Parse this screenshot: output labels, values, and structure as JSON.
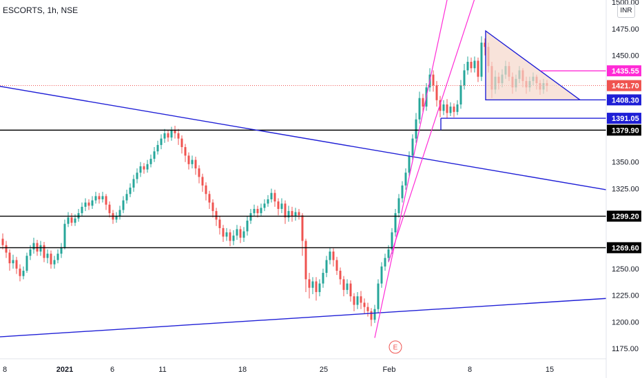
{
  "header": {
    "title": "ESCORTS, 1h, NSE",
    "currency": "INR"
  },
  "colors": {
    "up": "#26a69a",
    "down": "#ef5350",
    "trend_blue": "#1f1fd6",
    "channel_magenta": "#ff2bd6",
    "level_black": "#000000",
    "triangle_fill": "#f5d7cb",
    "last_price": "#ef5350"
  },
  "chart_data": {
    "type": "candlestick",
    "symbol": "ESCORTS",
    "interval": "1h",
    "exchange": "NSE",
    "x_ticks": [
      "8",
      "2021",
      "6",
      "11",
      "18",
      "25",
      "Feb",
      "8",
      "15"
    ],
    "y_ticks": [
      "1500.00",
      "1475.00",
      "1450.00",
      "1350.00",
      "1325.00",
      "1250.00",
      "1225.00",
      "1200.00",
      "1175.00"
    ],
    "ylim": [
      1168,
      1502
    ],
    "price_tags": [
      {
        "label": "1435.55",
        "value": 1435.55,
        "kind": "magenta"
      },
      {
        "label": "1421.70",
        "value": 1421.7,
        "kind": "last"
      },
      {
        "label": "1408.30",
        "value": 1408.3,
        "kind": "blue"
      },
      {
        "label": "1391.05",
        "value": 1391.05,
        "kind": "blue"
      },
      {
        "label": "1379.90",
        "value": 1379.9,
        "kind": "black"
      },
      {
        "label": "1299.20",
        "value": 1299.2,
        "kind": "black"
      },
      {
        "label": "1269.60",
        "value": 1269.6,
        "kind": "black"
      }
    ],
    "horizontal_levels": [
      1379.9,
      1299.2,
      1269.6
    ],
    "last_price": 1421.7,
    "events": [
      {
        "label": "E",
        "type": "earnings"
      }
    ],
    "candles": [
      [
        1278,
        1272,
        1283,
        1268
      ],
      [
        1272,
        1265,
        1276,
        1260
      ],
      [
        1265,
        1255,
        1268,
        1248
      ],
      [
        1255,
        1258,
        1263,
        1250
      ],
      [
        1258,
        1250,
        1261,
        1245
      ],
      [
        1250,
        1243,
        1254,
        1238
      ],
      [
        1243,
        1248,
        1252,
        1240
      ],
      [
        1248,
        1262,
        1265,
        1246
      ],
      [
        1262,
        1268,
        1272,
        1258
      ],
      [
        1268,
        1274,
        1279,
        1264
      ],
      [
        1274,
        1266,
        1277,
        1262
      ],
      [
        1266,
        1272,
        1276,
        1262
      ],
      [
        1272,
        1260,
        1275,
        1256
      ],
      [
        1260,
        1264,
        1268,
        1255
      ],
      [
        1264,
        1254,
        1267,
        1250
      ],
      [
        1254,
        1258,
        1262,
        1250
      ],
      [
        1258,
        1264,
        1268,
        1255
      ],
      [
        1264,
        1270,
        1274,
        1260
      ],
      [
        1270,
        1292,
        1296,
        1268
      ],
      [
        1292,
        1298,
        1303,
        1289
      ],
      [
        1298,
        1293,
        1302,
        1290
      ],
      [
        1293,
        1297,
        1301,
        1290
      ],
      [
        1297,
        1302,
        1306,
        1294
      ],
      [
        1302,
        1308,
        1312,
        1299
      ],
      [
        1308,
        1312,
        1316,
        1304
      ],
      [
        1312,
        1309,
        1315,
        1305
      ],
      [
        1309,
        1314,
        1318,
        1306
      ],
      [
        1314,
        1318,
        1322,
        1311
      ],
      [
        1318,
        1315,
        1321,
        1311
      ],
      [
        1315,
        1318,
        1322,
        1312
      ],
      [
        1318,
        1310,
        1320,
        1305
      ],
      [
        1310,
        1302,
        1313,
        1298
      ],
      [
        1302,
        1296,
        1305,
        1292
      ],
      [
        1296,
        1299,
        1303,
        1293
      ],
      [
        1299,
        1305,
        1309,
        1296
      ],
      [
        1305,
        1314,
        1318,
        1302
      ],
      [
        1314,
        1320,
        1324,
        1311
      ],
      [
        1320,
        1326,
        1330,
        1317
      ],
      [
        1326,
        1334,
        1338,
        1322
      ],
      [
        1334,
        1340,
        1344,
        1330
      ],
      [
        1340,
        1346,
        1350,
        1336
      ],
      [
        1346,
        1343,
        1349,
        1339
      ],
      [
        1343,
        1348,
        1352,
        1340
      ],
      [
        1348,
        1353,
        1357,
        1345
      ],
      [
        1353,
        1360,
        1364,
        1350
      ],
      [
        1360,
        1366,
        1370,
        1357
      ],
      [
        1366,
        1372,
        1376,
        1362
      ],
      [
        1372,
        1377,
        1381,
        1368
      ],
      [
        1377,
        1373,
        1380,
        1369
      ],
      [
        1373,
        1380,
        1383,
        1370
      ],
      [
        1380,
        1377,
        1384,
        1372
      ],
      [
        1377,
        1372,
        1381,
        1366
      ],
      [
        1372,
        1364,
        1375,
        1358
      ],
      [
        1364,
        1356,
        1367,
        1350
      ],
      [
        1356,
        1348,
        1359,
        1343
      ],
      [
        1348,
        1352,
        1356,
        1344
      ],
      [
        1352,
        1344,
        1355,
        1338
      ],
      [
        1344,
        1336,
        1347,
        1330
      ],
      [
        1336,
        1328,
        1339,
        1322
      ],
      [
        1328,
        1320,
        1331,
        1314
      ],
      [
        1320,
        1312,
        1323,
        1306
      ],
      [
        1312,
        1304,
        1315,
        1298
      ],
      [
        1304,
        1296,
        1307,
        1290
      ],
      [
        1296,
        1288,
        1299,
        1282
      ],
      [
        1288,
        1280,
        1291,
        1275
      ],
      [
        1280,
        1284,
        1288,
        1276
      ],
      [
        1284,
        1276,
        1287,
        1271
      ],
      [
        1276,
        1281,
        1286,
        1272
      ],
      [
        1281,
        1287,
        1291,
        1277
      ],
      [
        1287,
        1279,
        1290,
        1274
      ],
      [
        1279,
        1285,
        1289,
        1275
      ],
      [
        1285,
        1295,
        1299,
        1281
      ],
      [
        1295,
        1302,
        1306,
        1292
      ],
      [
        1302,
        1306,
        1310,
        1299
      ],
      [
        1306,
        1302,
        1309,
        1298
      ],
      [
        1302,
        1307,
        1311,
        1299
      ],
      [
        1307,
        1311,
        1315,
        1304
      ],
      [
        1311,
        1315,
        1319,
        1308
      ],
      [
        1315,
        1321,
        1325,
        1312
      ],
      [
        1321,
        1313,
        1324,
        1308
      ],
      [
        1313,
        1306,
        1316,
        1300
      ],
      [
        1306,
        1311,
        1316,
        1302
      ],
      [
        1311,
        1298,
        1314,
        1292
      ],
      [
        1298,
        1304,
        1309,
        1294
      ],
      [
        1304,
        1299,
        1308,
        1294
      ],
      [
        1299,
        1303,
        1307,
        1295
      ],
      [
        1303,
        1300,
        1306,
        1296
      ],
      [
        1300,
        1276,
        1302,
        1262
      ],
      [
        1276,
        1240,
        1278,
        1228
      ],
      [
        1240,
        1232,
        1246,
        1222
      ],
      [
        1232,
        1238,
        1242,
        1226
      ],
      [
        1238,
        1228,
        1242,
        1220
      ],
      [
        1228,
        1236,
        1240,
        1224
      ],
      [
        1236,
        1246,
        1250,
        1232
      ],
      [
        1246,
        1258,
        1262,
        1242
      ],
      [
        1258,
        1266,
        1270,
        1254
      ],
      [
        1266,
        1258,
        1269,
        1252
      ],
      [
        1258,
        1248,
        1261,
        1244
      ],
      [
        1248,
        1240,
        1251,
        1235
      ],
      [
        1240,
        1230,
        1243,
        1224
      ],
      [
        1230,
        1236,
        1240,
        1226
      ],
      [
        1236,
        1224,
        1239,
        1219
      ],
      [
        1224,
        1216,
        1227,
        1210
      ],
      [
        1216,
        1224,
        1228,
        1212
      ],
      [
        1224,
        1218,
        1229,
        1212
      ],
      [
        1218,
        1214,
        1222,
        1208
      ],
      [
        1214,
        1210,
        1218,
        1205
      ],
      [
        1210,
        1202,
        1213,
        1196
      ],
      [
        1202,
        1212,
        1216,
        1199
      ],
      [
        1212,
        1236,
        1240,
        1208
      ],
      [
        1236,
        1252,
        1256,
        1232
      ],
      [
        1252,
        1260,
        1264,
        1248
      ],
      [
        1260,
        1268,
        1272,
        1256
      ],
      [
        1268,
        1284,
        1288,
        1264
      ],
      [
        1284,
        1302,
        1306,
        1280
      ],
      [
        1302,
        1316,
        1320,
        1298
      ],
      [
        1316,
        1328,
        1332,
        1312
      ],
      [
        1328,
        1340,
        1344,
        1324
      ],
      [
        1340,
        1356,
        1360,
        1336
      ],
      [
        1356,
        1372,
        1376,
        1352
      ],
      [
        1372,
        1390,
        1396,
        1368
      ],
      [
        1390,
        1410,
        1416,
        1386
      ],
      [
        1410,
        1402,
        1414,
        1396
      ],
      [
        1402,
        1420,
        1424,
        1398
      ],
      [
        1420,
        1432,
        1438,
        1416
      ],
      [
        1432,
        1422,
        1436,
        1416
      ],
      [
        1422,
        1408,
        1426,
        1402
      ],
      [
        1408,
        1398,
        1412,
        1392
      ],
      [
        1398,
        1404,
        1408,
        1394
      ],
      [
        1404,
        1396,
        1409,
        1391
      ],
      [
        1396,
        1402,
        1406,
        1393
      ],
      [
        1402,
        1397,
        1405,
        1392
      ],
      [
        1397,
        1404,
        1408,
        1394
      ],
      [
        1404,
        1422,
        1427,
        1400
      ],
      [
        1422,
        1436,
        1442,
        1418
      ],
      [
        1436,
        1444,
        1449,
        1432
      ],
      [
        1444,
        1438,
        1448,
        1434
      ],
      [
        1438,
        1445,
        1449,
        1434
      ],
      [
        1445,
        1430,
        1448,
        1425
      ],
      [
        1430,
        1462,
        1468,
        1426
      ],
      [
        1462,
        1458,
        1466,
        1450
      ],
      [
        1458,
        1440,
        1462,
        1434
      ],
      [
        1440,
        1418,
        1444,
        1410
      ],
      [
        1418,
        1430,
        1436,
        1414
      ],
      [
        1430,
        1424,
        1434,
        1418
      ],
      [
        1424,
        1432,
        1437,
        1420
      ],
      [
        1432,
        1440,
        1445,
        1428
      ],
      [
        1440,
        1430,
        1444,
        1426
      ],
      [
        1430,
        1420,
        1434,
        1414
      ],
      [
        1420,
        1428,
        1432,
        1416
      ],
      [
        1428,
        1436,
        1440,
        1424
      ],
      [
        1436,
        1426,
        1438,
        1420
      ],
      [
        1426,
        1420,
        1430,
        1414
      ],
      [
        1420,
        1426,
        1430,
        1416
      ],
      [
        1426,
        1430,
        1434,
        1422
      ],
      [
        1430,
        1424,
        1432,
        1418
      ],
      [
        1424,
        1418,
        1427,
        1413
      ],
      [
        1418,
        1424,
        1428,
        1414
      ],
      [
        1424,
        1421.7,
        1427,
        1416
      ]
    ]
  }
}
